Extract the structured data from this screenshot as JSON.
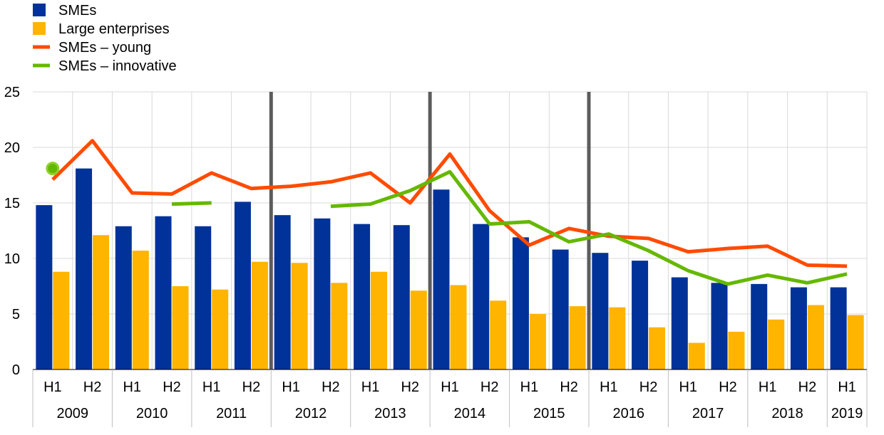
{
  "chart_data": {
    "type": "bar",
    "legend": {
      "placement": "top-left",
      "entries": [
        {
          "label": "SMEs",
          "kind": "bar",
          "color": "#003299"
        },
        {
          "label": "Large enterprises",
          "kind": "bar",
          "color": "#FFB400"
        },
        {
          "label": "SMEs – young",
          "kind": "line",
          "color": "#FF4B00"
        },
        {
          "label": "SMEs – innovative",
          "kind": "line",
          "color": "#65B800"
        }
      ]
    },
    "categories": [
      "H1",
      "H2",
      "H1",
      "H2",
      "H1",
      "H2",
      "H1",
      "H2",
      "H1",
      "H2",
      "H1",
      "H2",
      "H1",
      "H2",
      "H1",
      "H2",
      "H1",
      "H2",
      "H1",
      "H2",
      "H1"
    ],
    "year_groups": [
      {
        "label": "2009",
        "start": 0,
        "count": 2
      },
      {
        "label": "2010",
        "start": 2,
        "count": 2
      },
      {
        "label": "2011",
        "start": 4,
        "count": 2
      },
      {
        "label": "2012",
        "start": 6,
        "count": 2
      },
      {
        "label": "2013",
        "start": 8,
        "count": 2
      },
      {
        "label": "2014",
        "start": 10,
        "count": 2
      },
      {
        "label": "2015",
        "start": 12,
        "count": 2
      },
      {
        "label": "2016",
        "start": 14,
        "count": 2
      },
      {
        "label": "2017",
        "start": 16,
        "count": 2
      },
      {
        "label": "2018",
        "start": 18,
        "count": 2
      },
      {
        "label": "2019",
        "start": 20,
        "count": 1
      }
    ],
    "series": [
      {
        "name": "SMEs",
        "kind": "bar",
        "color": "#003299",
        "values": [
          14.8,
          18.1,
          12.9,
          13.8,
          12.9,
          15.1,
          13.9,
          13.6,
          13.1,
          13.0,
          16.2,
          13.1,
          11.9,
          10.8,
          10.5,
          9.8,
          8.3,
          7.8,
          7.7,
          7.4,
          7.4
        ]
      },
      {
        "name": "Large enterprises",
        "kind": "bar",
        "color": "#FFB400",
        "values": [
          8.8,
          12.1,
          10.7,
          7.5,
          7.2,
          9.7,
          9.6,
          7.8,
          8.8,
          7.1,
          7.6,
          6.2,
          5.0,
          5.7,
          5.6,
          3.8,
          2.4,
          3.4,
          4.5,
          5.8,
          4.9
        ]
      },
      {
        "name": "SMEs – young",
        "kind": "line",
        "color": "#FF4B00",
        "values": [
          17.1,
          20.6,
          15.9,
          15.8,
          17.7,
          16.3,
          16.5,
          16.9,
          17.7,
          15.0,
          19.4,
          14.3,
          11.2,
          12.7,
          12.0,
          11.8,
          10.6,
          10.9,
          11.1,
          9.4,
          9.3
        ]
      },
      {
        "name": "SMEs – innovative",
        "kind": "line",
        "color": "#65B800",
        "values": [
          18.1,
          null,
          null,
          14.9,
          15.0,
          null,
          null,
          14.7,
          14.9,
          16.1,
          17.8,
          13.1,
          13.3,
          11.5,
          12.2,
          10.7,
          8.9,
          7.7,
          8.5,
          7.8,
          8.6
        ]
      }
    ],
    "y_ticks": [
      "0",
      "5",
      "10",
      "15",
      "20",
      "25"
    ],
    "ylim": [
      0,
      25
    ],
    "grid": true,
    "vertical_markers_between": [
      6,
      10,
      14
    ]
  }
}
